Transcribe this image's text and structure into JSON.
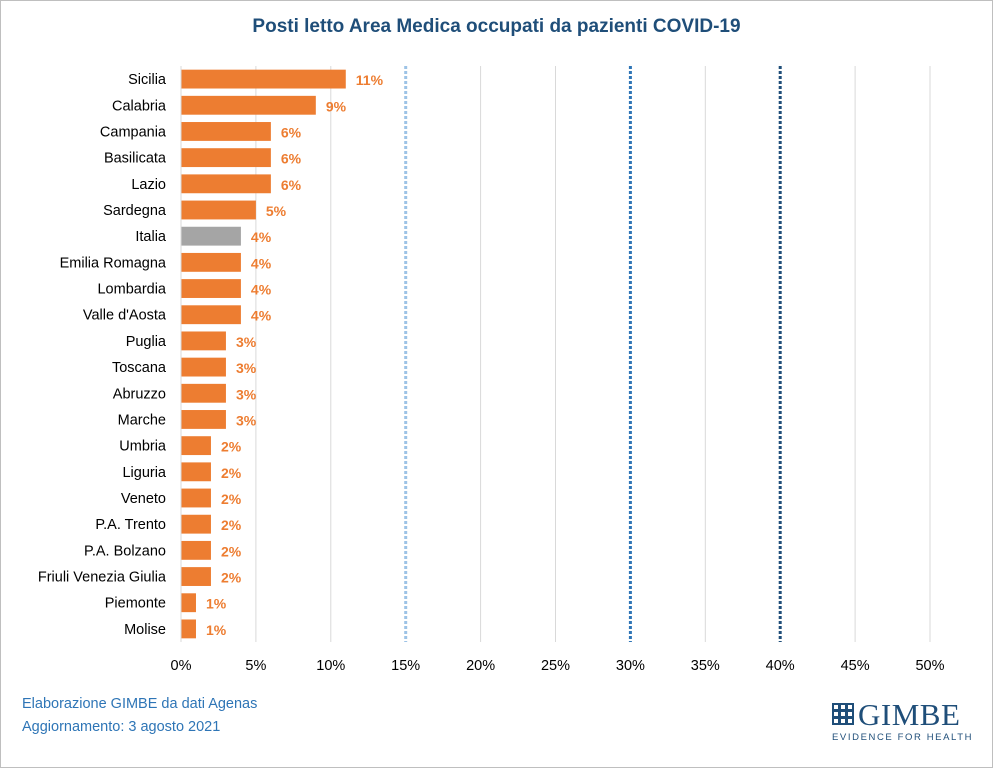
{
  "title": "Posti letto Area Medica occupati da pazienti COVID-19",
  "chart_data": {
    "type": "bar",
    "orientation": "horizontal",
    "title": "Posti letto Area Medica occupati da pazienti COVID-19",
    "categories": [
      "Sicilia",
      "Calabria",
      "Campania",
      "Basilicata",
      "Lazio",
      "Sardegna",
      "Italia",
      "Emilia Romagna",
      "Lombardia",
      "Valle d'Aosta",
      "Puglia",
      "Toscana",
      "Abruzzo",
      "Marche",
      "Umbria",
      "Liguria",
      "Veneto",
      "P.A. Trento",
      "P.A. Bolzano",
      "Friuli Venezia Giulia",
      "Piemonte",
      "Molise"
    ],
    "values": [
      11,
      9,
      6,
      6,
      6,
      5,
      4,
      4,
      4,
      4,
      3,
      3,
      3,
      3,
      2,
      2,
      2,
      2,
      2,
      2,
      1,
      1
    ],
    "value_labels": [
      "11%",
      "9%",
      "6%",
      "6%",
      "6%",
      "5%",
      "4%",
      "4%",
      "4%",
      "4%",
      "3%",
      "3%",
      "3%",
      "3%",
      "2%",
      "2%",
      "2%",
      "2%",
      "2%",
      "2%",
      "1%",
      "1%"
    ],
    "bar_colors": [
      "#ed7d31",
      "#ed7d31",
      "#ed7d31",
      "#ed7d31",
      "#ed7d31",
      "#ed7d31",
      "#a5a5a5",
      "#ed7d31",
      "#ed7d31",
      "#ed7d31",
      "#ed7d31",
      "#ed7d31",
      "#ed7d31",
      "#ed7d31",
      "#ed7d31",
      "#ed7d31",
      "#ed7d31",
      "#ed7d31",
      "#ed7d31",
      "#ed7d31",
      "#ed7d31",
      "#ed7d31"
    ],
    "xlim": [
      0,
      50
    ],
    "x_ticks": [
      0,
      5,
      10,
      15,
      20,
      25,
      30,
      35,
      40,
      45,
      50
    ],
    "x_tick_labels": [
      "0%",
      "5%",
      "10%",
      "15%",
      "20%",
      "25%",
      "30%",
      "35%",
      "40%",
      "45%",
      "50%"
    ],
    "reference_lines": [
      {
        "x": 15,
        "color": "#9dc3e6"
      },
      {
        "x": 30,
        "color": "#2e75b6"
      },
      {
        "x": 40,
        "color": "#1f4e79"
      }
    ],
    "grid": true,
    "xlabel": "",
    "ylabel": ""
  },
  "footer": {
    "source": "Elaborazione GIMBE da dati Agenas",
    "updated": "Aggiornamento: 3 agosto 2021"
  },
  "logo": {
    "word": "GIMBE",
    "tagline": "EVIDENCE FOR HEALTH",
    "color": "#1f4e79"
  },
  "colors": {
    "bar": "#ed7d31",
    "highlight": "#a5a5a5",
    "value_label": "#ed7d31",
    "title": "#1f4e79",
    "footer": "#2e75b6"
  }
}
